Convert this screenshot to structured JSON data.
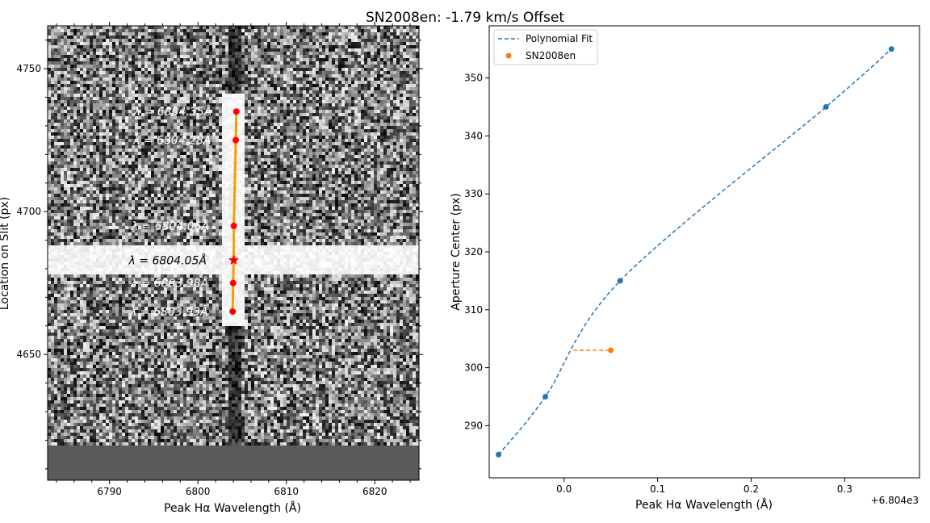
{
  "figure": {
    "title": "SN2008en: -1.79 km/s Offset"
  },
  "chart_data": [
    {
      "type": "heatmap",
      "xlabel": "Peak Hα Wavelength (Å)",
      "ylabel": "Location on Slit (px)",
      "xlim": [
        6783,
        6825
      ],
      "ylim": [
        4606,
        4765
      ],
      "xticks": [
        6790,
        6800,
        6810,
        6820
      ],
      "yticks": [
        4650,
        4700,
        4750
      ],
      "trace_points": [
        {
          "x": 6804.35,
          "y": 4735,
          "label": "λ = 6804.35Å"
        },
        {
          "x": 6804.28,
          "y": 4725,
          "label": "λ = 6804.28Å"
        },
        {
          "x": 6804.06,
          "y": 4695,
          "label": "λ = 6804.06Å"
        },
        {
          "x": 6803.98,
          "y": 4675,
          "label": "λ = 6803.98Å"
        },
        {
          "x": 6803.93,
          "y": 4665,
          "label": "λ = 6803.93Å"
        }
      ],
      "star_point": {
        "x": 6804.05,
        "y": 4683,
        "label": "λ = 6804.05Å"
      },
      "colors": {
        "points": "#ff0000",
        "trace": "#ffa500",
        "text_light": "#ffffff",
        "text_dark": "#000000"
      }
    },
    {
      "type": "scatter",
      "xlabel": "Peak Hα Wavelength (Å)",
      "ylabel": "Aperture Center (px)",
      "offset_text": "+6.804e3",
      "xlim": [
        -0.08,
        0.38
      ],
      "ylim": [
        281,
        359
      ],
      "xticks": [
        0.0,
        0.1,
        0.2,
        0.3
      ],
      "xtick_labels": [
        "0.0",
        "0.1",
        "0.2",
        "0.3"
      ],
      "yticks": [
        290,
        300,
        310,
        320,
        330,
        340,
        350
      ],
      "points": [
        {
          "x": -0.07,
          "y": 285
        },
        {
          "x": -0.02,
          "y": 295
        },
        {
          "x": 0.06,
          "y": 315
        },
        {
          "x": 0.28,
          "y": 345
        },
        {
          "x": 0.35,
          "y": 355
        }
      ],
      "sn_points": [
        {
          "x": 0.01,
          "y": 303
        },
        {
          "x": 0.05,
          "y": 303
        }
      ],
      "legend": [
        {
          "label": "Polynomial Fit",
          "style": "dashed-line",
          "color": "#1f77b4"
        },
        {
          "label": "SN2008en",
          "style": "dot",
          "color": "#ff7f0e"
        }
      ],
      "legend_position": "upper-left",
      "colors": {
        "fit": "#1f77b4",
        "sn": "#ff7f0e"
      }
    }
  ]
}
